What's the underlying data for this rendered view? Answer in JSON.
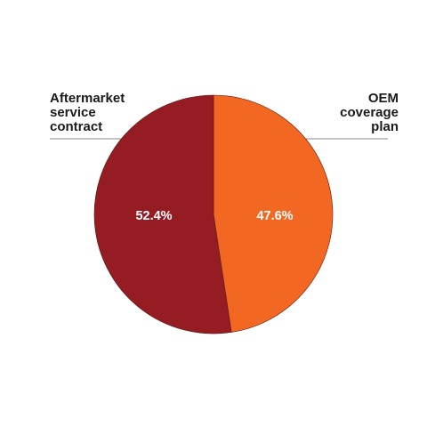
{
  "chart_data": {
    "type": "pie",
    "title": "",
    "slices": [
      {
        "label": "Aftermarket\nservice\ncontract",
        "value": 52.4,
        "display": "52.4%",
        "color": "#941c22"
      },
      {
        "label": "OEM\ncoverage\nplan",
        "value": 47.6,
        "display": "47.6%",
        "color": "#f26722"
      }
    ],
    "legend": "callout-lines-top",
    "grid": false
  }
}
